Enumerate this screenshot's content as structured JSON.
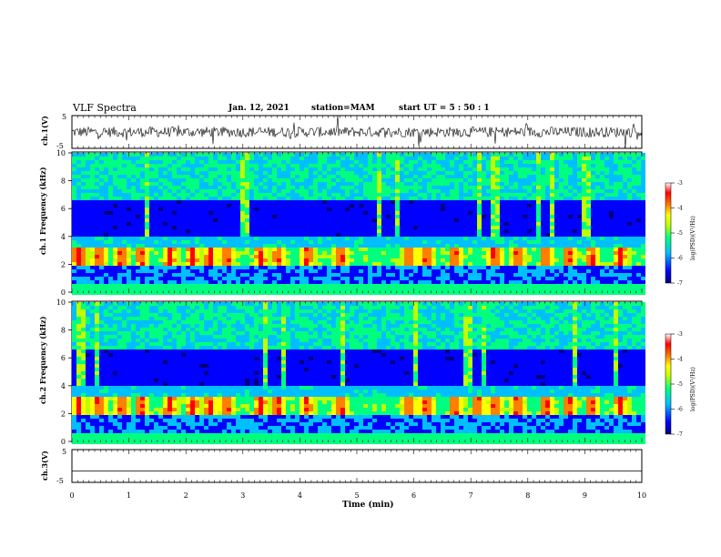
{
  "header": {
    "title": "VLF Spectra",
    "date": "Jan. 12, 2021",
    "station": "station=MAM",
    "start": "start UT = 5 : 50 : 1"
  },
  "chart_data": [
    {
      "type": "line",
      "panel": "ch1-waveform",
      "ylabel": "ch.1(V)",
      "ylim": [
        -5,
        5
      ],
      "yticks": [
        "5",
        "-5"
      ],
      "xlim": [
        0,
        10
      ],
      "description_values": {
        "mean": 0,
        "amplitude_typical": 1.6,
        "amplitude_spikes": 4
      }
    },
    {
      "type": "heatmap",
      "panel": "ch1-spectrogram",
      "ylabel": "ch.1 Frequency (kHz)",
      "ylim": [
        0,
        10
      ],
      "yticks": [
        "0",
        "2",
        "4",
        "6",
        "8",
        "10"
      ],
      "xlim": [
        0,
        10
      ],
      "colorbar": {
        "label": "log(PSD)(V²/Hz)",
        "range": [
          -7,
          -3
        ],
        "ticks": [
          "-3",
          "-4",
          "-5",
          "-6",
          "-7"
        ],
        "colormap": [
          "#00007f",
          "#0000ff",
          "#00bfff",
          "#00ff7f",
          "#bfff00",
          "#ffff00",
          "#ff7f00",
          "#ff0000",
          "#ffffff"
        ]
      },
      "bursts_min": [
        0.0,
        0.35,
        0.75,
        1.1,
        1.6,
        2.0,
        2.3,
        2.6,
        3.2,
        3.5,
        4.0,
        4.6,
        5.8,
        6.1,
        6.6,
        7.3,
        7.7,
        8.2,
        8.6,
        9.0,
        9.5
      ],
      "chorus_band_khz": [
        2.0,
        3.2
      ],
      "low_band_khz": [
        0.5,
        1.8
      ]
    },
    {
      "type": "heatmap",
      "panel": "ch2-spectrogram",
      "ylabel": "ch.2 Frequency (kHz)",
      "ylim": [
        0,
        10
      ],
      "yticks": [
        "0",
        "2",
        "4",
        "6",
        "8",
        "10"
      ],
      "xlim": [
        0,
        10
      ],
      "colorbar": {
        "label": "log(PSD)(V²/Hz)",
        "range": [
          -7,
          -3
        ],
        "ticks": [
          "-3",
          "-4",
          "-5",
          "-6",
          "-7"
        ]
      },
      "bursts_min": [
        0.0,
        0.35,
        0.75,
        1.1,
        1.6,
        2.0,
        2.3,
        2.6,
        3.2,
        3.5,
        4.0,
        4.6,
        5.8,
        6.1,
        6.6,
        7.0,
        7.3,
        7.7,
        8.2,
        8.6,
        9.0,
        9.5
      ],
      "chorus_band_khz": [
        2.0,
        3.2
      ],
      "low_band_khz": [
        0.5,
        1.8
      ]
    },
    {
      "type": "line",
      "panel": "ch3-waveform",
      "ylabel": "ch.3(V)",
      "ylim": [
        -5,
        5
      ],
      "yticks": [
        "5",
        "-5"
      ],
      "xlim": [
        0,
        10
      ],
      "value": -1.5
    }
  ],
  "xaxis": {
    "label": "Time (min)",
    "ticks": [
      "0",
      "1",
      "2",
      "3",
      "4",
      "5",
      "6",
      "7",
      "8",
      "9",
      "10"
    ]
  }
}
